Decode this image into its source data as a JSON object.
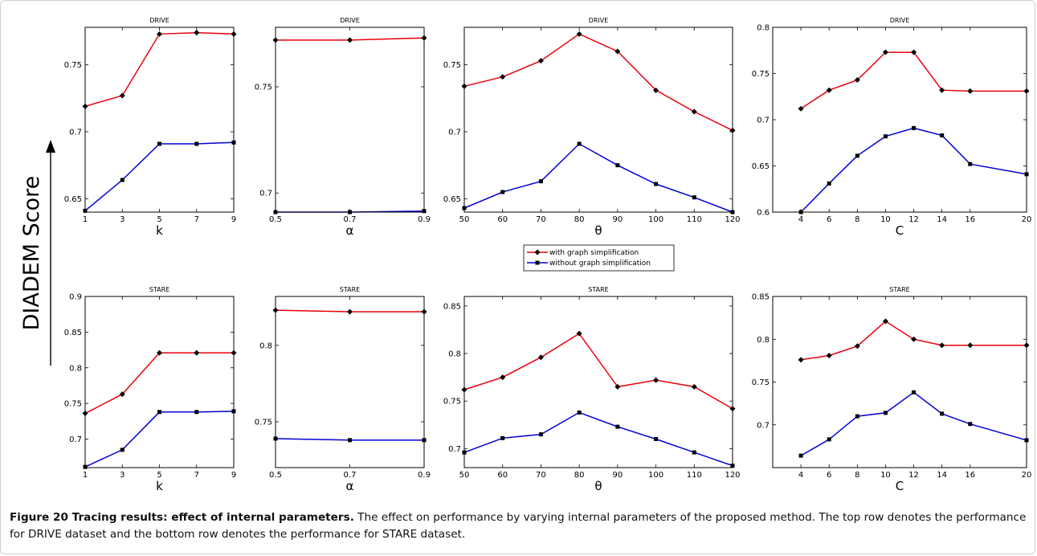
{
  "figure": {
    "y_axis_label": "DIADEM Score",
    "legend": [
      "with graph simplification",
      "without graph simplification"
    ],
    "caption_title": "Figure 20 Tracing results: effect of internal parameters.",
    "caption_text": " The effect on performance by varying internal parameters of the proposed method. The top row denotes the performance for DRIVE dataset and the bottom row denotes the performance for STARE dataset.",
    "colors": {
      "with": "#e8000b",
      "without": "#0000d6",
      "marker": "#000000"
    }
  },
  "chart_data": [
    {
      "type": "line",
      "title": "DRIVE",
      "xlabel": "k",
      "x": [
        1,
        3,
        5,
        7,
        9
      ],
      "xlim": [
        1,
        9
      ],
      "ylim": [
        0.64,
        0.778
      ],
      "xticks": [
        "1",
        "3",
        "5",
        "7",
        "9"
      ],
      "yticks": [
        0.65,
        0.7,
        0.75
      ],
      "series": [
        {
          "name": "with graph simplification",
          "values": [
            0.719,
            0.727,
            0.773,
            0.774,
            0.773
          ]
        },
        {
          "name": "without graph simplification",
          "values": [
            0.641,
            0.664,
            0.691,
            0.691,
            0.692
          ]
        }
      ]
    },
    {
      "type": "line",
      "title": "DRIVE",
      "xlabel": "α",
      "x": [
        0.5,
        0.7,
        0.9
      ],
      "xlim": [
        0.5,
        0.9
      ],
      "ylim": [
        0.691,
        0.778
      ],
      "xticks": [
        "0.5",
        "0.7",
        "0.9"
      ],
      "yticks": [
        0.7,
        0.75
      ],
      "series": [
        {
          "name": "with graph simplification",
          "values": [
            0.772,
            0.772,
            0.773
          ]
        },
        {
          "name": "without graph simplification",
          "values": [
            0.691,
            0.691,
            0.6915
          ]
        }
      ]
    },
    {
      "type": "line",
      "title": "DRIVE",
      "xlabel": "θ",
      "x": [
        50,
        60,
        70,
        80,
        90,
        100,
        110,
        120
      ],
      "xlim": [
        50,
        120
      ],
      "ylim": [
        0.64,
        0.778
      ],
      "xticks": [
        "50",
        "60",
        "70",
        "80",
        "90",
        "100",
        "110",
        "120"
      ],
      "yticks": [
        0.65,
        0.7,
        0.75
      ],
      "series": [
        {
          "name": "with graph simplification",
          "values": [
            0.734,
            0.741,
            0.753,
            0.773,
            0.76,
            0.731,
            0.715,
            0.701
          ]
        },
        {
          "name": "without graph simplification",
          "values": [
            0.643,
            0.655,
            0.663,
            0.691,
            0.675,
            0.661,
            0.651,
            0.64
          ]
        }
      ]
    },
    {
      "type": "line",
      "title": "DRIVE",
      "xlabel": "C",
      "x": [
        4,
        6,
        8,
        10,
        12,
        14,
        16,
        20
      ],
      "xlim": [
        2,
        20
      ],
      "ylim": [
        0.6,
        0.8
      ],
      "xticks": [
        "4",
        "6",
        "8",
        "10",
        "12",
        "14",
        "16",
        "20"
      ],
      "yticks": [
        0.6,
        0.65,
        0.7,
        0.75,
        0.8
      ],
      "series": [
        {
          "name": "with graph simplification",
          "values": [
            0.712,
            0.732,
            0.743,
            0.773,
            0.773,
            0.732,
            0.731,
            0.731
          ]
        },
        {
          "name": "without graph simplification",
          "values": [
            0.6,
            0.631,
            0.661,
            0.682,
            0.691,
            0.683,
            0.652,
            0.641
          ]
        }
      ]
    },
    {
      "type": "line",
      "title": "STARE",
      "xlabel": "k",
      "x": [
        1,
        3,
        5,
        7,
        9
      ],
      "xlim": [
        1,
        9
      ],
      "ylim": [
        0.66,
        0.9
      ],
      "xticks": [
        "1",
        "3",
        "5",
        "7",
        "9"
      ],
      "yticks": [
        0.7,
        0.75,
        0.8,
        0.85,
        0.9
      ],
      "series": [
        {
          "name": "with graph simplification",
          "values": [
            0.736,
            0.763,
            0.821,
            0.821,
            0.821
          ]
        },
        {
          "name": "without graph simplification",
          "values": [
            0.661,
            0.685,
            0.738,
            0.738,
            0.739
          ]
        }
      ]
    },
    {
      "type": "line",
      "title": "STARE",
      "xlabel": "α",
      "x": [
        0.5,
        0.7,
        0.9
      ],
      "xlim": [
        0.5,
        0.9
      ],
      "ylim": [
        0.72,
        0.832
      ],
      "xticks": [
        "0.5",
        "0.7",
        "0.9"
      ],
      "yticks": [
        0.75,
        0.8
      ],
      "series": [
        {
          "name": "with graph simplification",
          "values": [
            0.823,
            0.822,
            0.822
          ]
        },
        {
          "name": "without graph simplification",
          "values": [
            0.739,
            0.738,
            0.738
          ]
        }
      ]
    },
    {
      "type": "line",
      "title": "STARE",
      "xlabel": "θ",
      "x": [
        50,
        60,
        70,
        80,
        90,
        100,
        110,
        120
      ],
      "xlim": [
        50,
        120
      ],
      "ylim": [
        0.68,
        0.86
      ],
      "xticks": [
        "50",
        "60",
        "70",
        "80",
        "90",
        "100",
        "110",
        "120"
      ],
      "yticks": [
        0.7,
        0.75,
        0.8,
        0.85
      ],
      "series": [
        {
          "name": "with graph simplification",
          "values": [
            0.762,
            0.775,
            0.796,
            0.821,
            0.765,
            0.772,
            0.765,
            0.742
          ]
        },
        {
          "name": "without graph simplification",
          "values": [
            0.696,
            0.711,
            0.715,
            0.738,
            0.723,
            0.71,
            0.696,
            0.682
          ]
        }
      ]
    },
    {
      "type": "line",
      "title": "STARE",
      "xlabel": "C",
      "x": [
        4,
        6,
        8,
        10,
        12,
        14,
        16,
        20
      ],
      "xlim": [
        2,
        20
      ],
      "ylim": [
        0.65,
        0.85
      ],
      "xticks": [
        "4",
        "6",
        "8",
        "10",
        "12",
        "14",
        "16",
        "20"
      ],
      "yticks": [
        0.7,
        0.75,
        0.8,
        0.85
      ],
      "series": [
        {
          "name": "with graph simplification",
          "values": [
            0.776,
            0.781,
            0.792,
            0.821,
            0.8,
            0.793,
            0.793,
            0.793
          ]
        },
        {
          "name": "without graph simplification",
          "values": [
            0.664,
            0.683,
            0.71,
            0.714,
            0.738,
            0.713,
            0.701,
            0.682
          ]
        }
      ]
    }
  ]
}
